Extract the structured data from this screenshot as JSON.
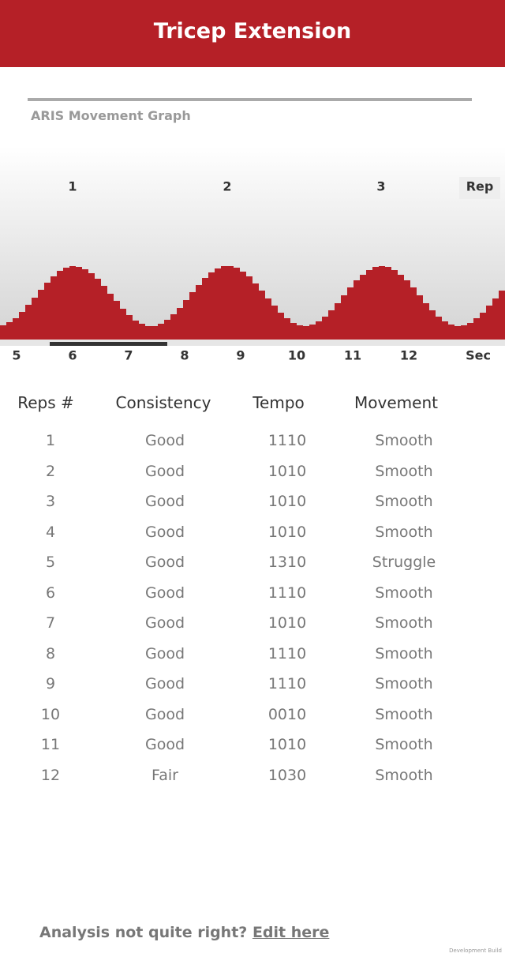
{
  "header": {
    "title": "Tricep Extension"
  },
  "graph": {
    "title": "ARIS Movement Graph",
    "rep_labels": [
      "1",
      "2",
      "3"
    ],
    "rep_unit": "Rep",
    "sec_labels": [
      "5",
      "6",
      "7",
      "8",
      "9",
      "10",
      "11",
      "12"
    ],
    "sec_unit": "Sec"
  },
  "table": {
    "columns": [
      "Reps #",
      "Consistency",
      "Tempo",
      "Movement"
    ],
    "rows": [
      [
        "1",
        "Good",
        "1110",
        "Smooth"
      ],
      [
        "2",
        "Good",
        "1010",
        "Smooth"
      ],
      [
        "3",
        "Good",
        "1010",
        "Smooth"
      ],
      [
        "4",
        "Good",
        "1010",
        "Smooth"
      ],
      [
        "5",
        "Good",
        "1310",
        "Struggle"
      ],
      [
        "6",
        "Good",
        "1110",
        "Smooth"
      ],
      [
        "7",
        "Good",
        "1010",
        "Smooth"
      ],
      [
        "8",
        "Good",
        "1110",
        "Smooth"
      ],
      [
        "9",
        "Good",
        "1110",
        "Smooth"
      ],
      [
        "10",
        "Good",
        "0010",
        "Smooth"
      ],
      [
        "11",
        "Good",
        "1010",
        "Smooth"
      ],
      [
        "12",
        "Fair",
        "1030",
        "Smooth"
      ]
    ]
  },
  "footer": {
    "text": "Analysis not quite right?",
    "link": "Edit here"
  },
  "build_label": "Development Build"
}
